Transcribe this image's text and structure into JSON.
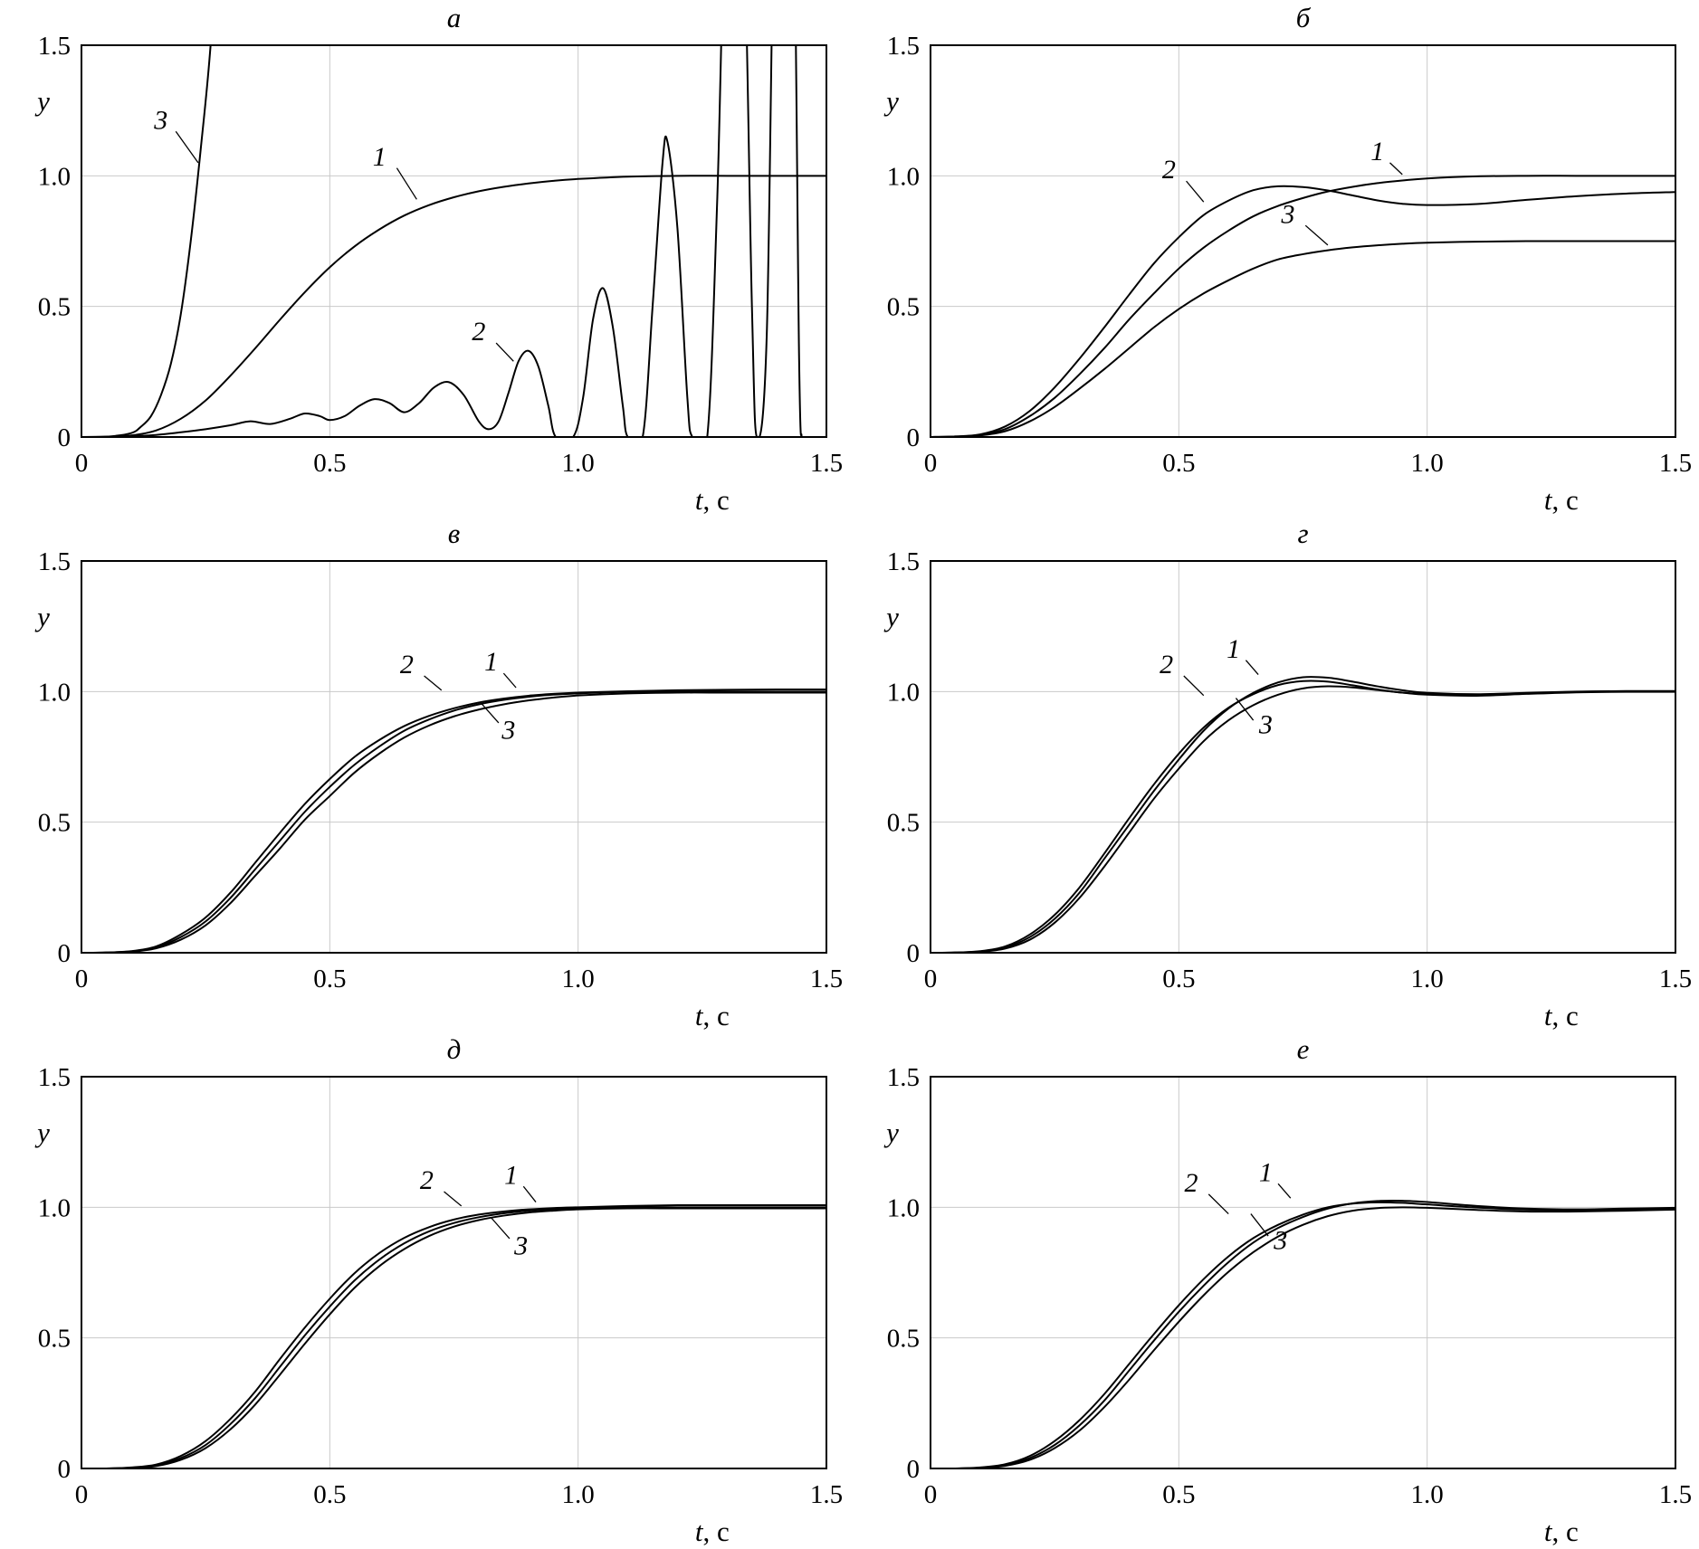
{
  "figure": {
    "background": "#ffffff",
    "line_color": "#000000",
    "grid_color": "#c9c9c9"
  },
  "axes": {
    "xlim": [
      0,
      1.5
    ],
    "ylim": [
      0,
      1.5
    ],
    "xticks": [
      0,
      0.5,
      1.0,
      1.5
    ],
    "xtick_labels": [
      "0",
      "0.5",
      "1.0",
      "1.5"
    ],
    "yticks": [
      0,
      0.5,
      1.0,
      1.5
    ],
    "ytick_labels": [
      "0",
      "0.5",
      "1.0",
      "1.5"
    ],
    "grid_xticks": [
      0.5,
      1.0
    ],
    "grid_yticks": [
      0.5,
      1.0
    ],
    "xlabel_em": "t",
    "xlabel_rest": ", c",
    "ylabel": "y"
  },
  "chart_data": [
    {
      "id": "a",
      "title": "а",
      "type": "line",
      "x": [
        0,
        0.05,
        0.1,
        0.15,
        0.2,
        0.25,
        0.3,
        0.35,
        0.4,
        0.45,
        0.5,
        0.55,
        0.6,
        0.65,
        0.7,
        0.75,
        0.8,
        0.85,
        0.9,
        0.95,
        1,
        1.1,
        1.2,
        1.3,
        1.4,
        1.5
      ],
      "series": [
        {
          "name": "1",
          "y": [
            0,
            0.001,
            0.006,
            0.025,
            0.07,
            0.14,
            0.235,
            0.34,
            0.45,
            0.555,
            0.65,
            0.73,
            0.795,
            0.848,
            0.888,
            0.918,
            0.941,
            0.958,
            0.971,
            0.981,
            0.988,
            0.997,
            1,
            1,
            1,
            1
          ]
        },
        {
          "name": "2",
          "x": [
            0,
            0.1,
            0.15,
            0.2,
            0.25,
            0.3,
            0.34,
            0.38,
            0.42,
            0.45,
            0.48,
            0.5,
            0.53,
            0.56,
            0.59,
            0.62,
            0.65,
            0.68,
            0.71,
            0.74,
            0.77,
            0.8,
            0.82,
            0.84,
            0.86,
            0.88,
            0.9,
            0.92,
            0.94,
            0.955,
            0.99,
            1.01,
            1.03,
            1.05,
            1.07,
            1.09,
            1.1,
            1.13,
            1.15,
            1.17,
            1.18,
            1.2,
            1.22,
            1.23,
            1.26,
            1.28,
            1.3,
            1.33,
            1.35,
            1.36,
            1.38,
            1.4,
            1.43,
            1.445,
            1.45
          ],
          "y": [
            0,
            0.003,
            0.008,
            0.018,
            0.03,
            0.045,
            0.06,
            0.05,
            0.07,
            0.09,
            0.08,
            0.065,
            0.08,
            0.12,
            0.145,
            0.13,
            0.095,
            0.13,
            0.19,
            0.21,
            0.16,
            0.06,
            0.03,
            0.06,
            0.17,
            0.29,
            0.33,
            0.27,
            0.12,
            0,
            0,
            0.15,
            0.45,
            0.57,
            0.42,
            0.12,
            0,
            0,
            0.5,
            1.05,
            1.13,
            0.8,
            0.15,
            0,
            0,
            0.9,
            2.2,
            2.2,
            0.5,
            0,
            0.4,
            2.5,
            2.5,
            0.3,
            0
          ]
        },
        {
          "name": "3",
          "x": [
            0,
            0.05,
            0.1,
            0.12,
            0.14,
            0.16,
            0.18,
            0.2,
            0.22,
            0.24,
            0.26,
            0.28
          ],
          "y": [
            0,
            0.001,
            0.015,
            0.04,
            0.08,
            0.16,
            0.28,
            0.47,
            0.75,
            1.1,
            1.5,
            2.1
          ]
        }
      ],
      "annotations": [
        {
          "label": "3",
          "pos": [
            0.16,
            1.18
          ],
          "line": [
            0.19,
            1.17,
            0.235,
            1.05
          ]
        },
        {
          "label": "1",
          "pos": [
            0.6,
            1.04
          ],
          "line": [
            0.635,
            1.03,
            0.675,
            0.91
          ]
        },
        {
          "label": "2",
          "pos": [
            0.8,
            0.37
          ],
          "line": [
            0.835,
            0.36,
            0.87,
            0.29
          ]
        }
      ]
    },
    {
      "id": "b",
      "title": "б",
      "type": "line",
      "x": [
        0,
        0.05,
        0.1,
        0.15,
        0.2,
        0.25,
        0.3,
        0.35,
        0.4,
        0.45,
        0.5,
        0.55,
        0.6,
        0.65,
        0.7,
        0.75,
        0.8,
        0.85,
        0.9,
        0.95,
        1,
        1.1,
        1.2,
        1.3,
        1.4,
        1.5
      ],
      "series": [
        {
          "name": "1",
          "y": [
            0,
            0.002,
            0.008,
            0.03,
            0.08,
            0.15,
            0.24,
            0.34,
            0.45,
            0.55,
            0.645,
            0.725,
            0.79,
            0.845,
            0.885,
            0.915,
            0.94,
            0.958,
            0.972,
            0.982,
            0.99,
            0.998,
            1,
            1,
            1,
            1
          ]
        },
        {
          "name": "2",
          "y": [
            0,
            0.002,
            0.01,
            0.04,
            0.1,
            0.19,
            0.3,
            0.42,
            0.545,
            0.665,
            0.765,
            0.85,
            0.905,
            0.945,
            0.96,
            0.957,
            0.944,
            0.925,
            0.906,
            0.893,
            0.888,
            0.892,
            0.908,
            0.922,
            0.932,
            0.938
          ]
        },
        {
          "name": "3",
          "y": [
            0,
            0.001,
            0.006,
            0.022,
            0.06,
            0.115,
            0.185,
            0.26,
            0.34,
            0.42,
            0.49,
            0.55,
            0.6,
            0.645,
            0.68,
            0.7,
            0.715,
            0.726,
            0.734,
            0.74,
            0.744,
            0.748,
            0.75,
            0.75,
            0.75,
            0.75
          ]
        }
      ],
      "annotations": [
        {
          "label": "2",
          "pos": [
            0.48,
            0.99
          ],
          "line": [
            0.515,
            0.98,
            0.55,
            0.9
          ]
        },
        {
          "label": "1",
          "pos": [
            0.9,
            1.06
          ],
          "line": [
            0.925,
            1.05,
            0.95,
            1.005
          ]
        },
        {
          "label": "3",
          "pos": [
            0.72,
            0.82
          ],
          "line": [
            0.755,
            0.81,
            0.8,
            0.735
          ]
        }
      ]
    },
    {
      "id": "v",
      "title": "в",
      "type": "line",
      "x": [
        0,
        0.05,
        0.1,
        0.15,
        0.2,
        0.25,
        0.3,
        0.35,
        0.4,
        0.45,
        0.5,
        0.55,
        0.6,
        0.65,
        0.7,
        0.75,
        0.8,
        0.85,
        0.9,
        0.95,
        1,
        1.1,
        1.2,
        1.3,
        1.4,
        1.5
      ],
      "series": [
        {
          "name": "1",
          "y": [
            0,
            0.001,
            0.005,
            0.02,
            0.06,
            0.12,
            0.21,
            0.32,
            0.43,
            0.54,
            0.635,
            0.72,
            0.79,
            0.85,
            0.893,
            0.927,
            0.951,
            0.968,
            0.98,
            0.988,
            0.993,
            0.999,
            1,
            1,
            1,
            1
          ]
        },
        {
          "name": "2",
          "y": [
            0,
            0.001,
            0.006,
            0.024,
            0.07,
            0.135,
            0.23,
            0.345,
            0.46,
            0.57,
            0.665,
            0.75,
            0.815,
            0.868,
            0.907,
            0.936,
            0.958,
            0.973,
            0.984,
            0.991,
            0.996,
            1.001,
            1.005,
            1.007,
            1.008,
            1.008
          ]
        },
        {
          "name": "3",
          "y": [
            0,
            0.001,
            0.004,
            0.017,
            0.05,
            0.105,
            0.19,
            0.295,
            0.4,
            0.51,
            0.6,
            0.69,
            0.763,
            0.824,
            0.87,
            0.905,
            0.931,
            0.951,
            0.966,
            0.977,
            0.985,
            0.993,
            0.996,
            0.996,
            0.996,
            0.996
          ]
        }
      ],
      "annotations": [
        {
          "label": "2",
          "pos": [
            0.655,
            1.07
          ],
          "line": [
            0.69,
            1.06,
            0.725,
            1.005
          ]
        },
        {
          "label": "1",
          "pos": [
            0.825,
            1.08
          ],
          "line": [
            0.85,
            1.07,
            0.875,
            1.015
          ]
        },
        {
          "label": "3",
          "pos": [
            0.86,
            0.82
          ],
          "line": [
            0.84,
            0.88,
            0.805,
            0.955
          ]
        }
      ]
    },
    {
      "id": "g",
      "title": "г",
      "type": "line",
      "x": [
        0,
        0.05,
        0.1,
        0.15,
        0.2,
        0.25,
        0.3,
        0.35,
        0.4,
        0.45,
        0.5,
        0.55,
        0.6,
        0.65,
        0.7,
        0.75,
        0.8,
        0.85,
        0.9,
        0.95,
        1,
        1.1,
        1.2,
        1.3,
        1.4,
        1.5
      ],
      "series": [
        {
          "name": "1",
          "y": [
            0,
            0.001,
            0.005,
            0.02,
            0.06,
            0.13,
            0.23,
            0.36,
            0.49,
            0.62,
            0.74,
            0.85,
            0.935,
            0.995,
            1.035,
            1.055,
            1.053,
            1.038,
            1.02,
            1.005,
            0.995,
            0.99,
            0.995,
            1,
            1.002,
            1.002
          ]
        },
        {
          "name": "2",
          "y": [
            0,
            0.001,
            0.006,
            0.024,
            0.07,
            0.145,
            0.25,
            0.38,
            0.515,
            0.645,
            0.762,
            0.862,
            0.938,
            0.99,
            1.025,
            1.04,
            1.038,
            1.024,
            1.008,
            0.996,
            0.99,
            0.987,
            0.993,
            0.999,
            1.001,
            1.001
          ]
        },
        {
          "name": "3",
          "y": [
            0,
            0.001,
            0.004,
            0.016,
            0.05,
            0.115,
            0.21,
            0.33,
            0.46,
            0.59,
            0.705,
            0.81,
            0.89,
            0.948,
            0.988,
            1.012,
            1.02,
            1.016,
            1.006,
            0.996,
            0.988,
            0.984,
            0.991,
            0.997,
            0.999,
            0.999
          ]
        }
      ],
      "annotations": [
        {
          "label": "2",
          "pos": [
            0.475,
            1.07
          ],
          "line": [
            0.51,
            1.06,
            0.55,
            0.985
          ]
        },
        {
          "label": "1",
          "pos": [
            0.61,
            1.13
          ],
          "line": [
            0.635,
            1.12,
            0.66,
            1.065
          ]
        },
        {
          "label": "3",
          "pos": [
            0.675,
            0.84
          ],
          "line": [
            0.65,
            0.89,
            0.615,
            0.975
          ]
        }
      ]
    },
    {
      "id": "d",
      "title": "д",
      "type": "line",
      "x": [
        0,
        0.05,
        0.1,
        0.15,
        0.2,
        0.25,
        0.3,
        0.35,
        0.4,
        0.45,
        0.5,
        0.55,
        0.6,
        0.65,
        0.7,
        0.75,
        0.8,
        0.85,
        0.9,
        0.95,
        1,
        1.1,
        1.2,
        1.3,
        1.4,
        1.5
      ],
      "series": [
        {
          "name": "1",
          "y": [
            0,
            0,
            0.003,
            0.012,
            0.04,
            0.09,
            0.17,
            0.27,
            0.39,
            0.51,
            0.62,
            0.72,
            0.8,
            0.862,
            0.908,
            0.94,
            0.962,
            0.977,
            0.987,
            0.993,
            0.997,
            1,
            1,
            1,
            1,
            1
          ]
        },
        {
          "name": "2",
          "y": [
            0,
            0,
            0.004,
            0.015,
            0.048,
            0.105,
            0.19,
            0.295,
            0.42,
            0.54,
            0.65,
            0.748,
            0.825,
            0.883,
            0.924,
            0.953,
            0.972,
            0.984,
            0.992,
            0.997,
            1,
            1.005,
            1.008,
            1.008,
            1.008,
            1.008
          ]
        },
        {
          "name": "3",
          "y": [
            0,
            0,
            0.002,
            0.009,
            0.033,
            0.078,
            0.15,
            0.245,
            0.36,
            0.478,
            0.59,
            0.692,
            0.775,
            0.84,
            0.89,
            0.926,
            0.951,
            0.968,
            0.98,
            0.987,
            0.992,
            0.996,
            0.996,
            0.996,
            0.996,
            0.996
          ]
        }
      ],
      "annotations": [
        {
          "label": "2",
          "pos": [
            0.695,
            1.07
          ],
          "line": [
            0.73,
            1.06,
            0.765,
            1.005
          ]
        },
        {
          "label": "1",
          "pos": [
            0.865,
            1.09
          ],
          "line": [
            0.89,
            1.08,
            0.915,
            1.02
          ]
        },
        {
          "label": "3",
          "pos": [
            0.885,
            0.82
          ],
          "line": [
            0.862,
            0.88,
            0.825,
            0.96
          ]
        }
      ]
    },
    {
      "id": "e",
      "title": "е",
      "type": "line",
      "x": [
        0,
        0.05,
        0.1,
        0.15,
        0.2,
        0.25,
        0.3,
        0.35,
        0.4,
        0.45,
        0.5,
        0.55,
        0.6,
        0.65,
        0.7,
        0.75,
        0.8,
        0.85,
        0.9,
        0.95,
        1,
        1.1,
        1.2,
        1.3,
        1.4,
        1.5
      ],
      "series": [
        {
          "name": "1",
          "y": [
            0,
            0,
            0.003,
            0.013,
            0.04,
            0.09,
            0.165,
            0.26,
            0.375,
            0.49,
            0.6,
            0.7,
            0.79,
            0.865,
            0.921,
            0.963,
            0.995,
            1.015,
            1.024,
            1.025,
            1.02,
            1.005,
            0.995,
            0.992,
            0.995,
            0.998
          ]
        },
        {
          "name": "2",
          "y": [
            0,
            0,
            0.004,
            0.016,
            0.048,
            0.105,
            0.185,
            0.285,
            0.4,
            0.515,
            0.625,
            0.725,
            0.812,
            0.882,
            0.933,
            0.972,
            1,
            1.014,
            1.019,
            1.017,
            1.011,
            0.999,
            0.991,
            0.989,
            0.992,
            0.995
          ]
        },
        {
          "name": "3",
          "y": [
            0,
            0,
            0.002,
            0.01,
            0.033,
            0.078,
            0.145,
            0.235,
            0.34,
            0.453,
            0.562,
            0.663,
            0.753,
            0.828,
            0.888,
            0.933,
            0.966,
            0.987,
            0.997,
            1,
            0.998,
            0.99,
            0.984,
            0.984,
            0.987,
            0.991
          ]
        }
      ],
      "annotations": [
        {
          "label": "2",
          "pos": [
            0.525,
            1.06
          ],
          "line": [
            0.56,
            1.05,
            0.6,
            0.975
          ]
        },
        {
          "label": "1",
          "pos": [
            0.675,
            1.1
          ],
          "line": [
            0.7,
            1.09,
            0.725,
            1.035
          ]
        },
        {
          "label": "3",
          "pos": [
            0.705,
            0.84
          ],
          "line": [
            0.68,
            0.89,
            0.645,
            0.975
          ]
        }
      ]
    }
  ]
}
